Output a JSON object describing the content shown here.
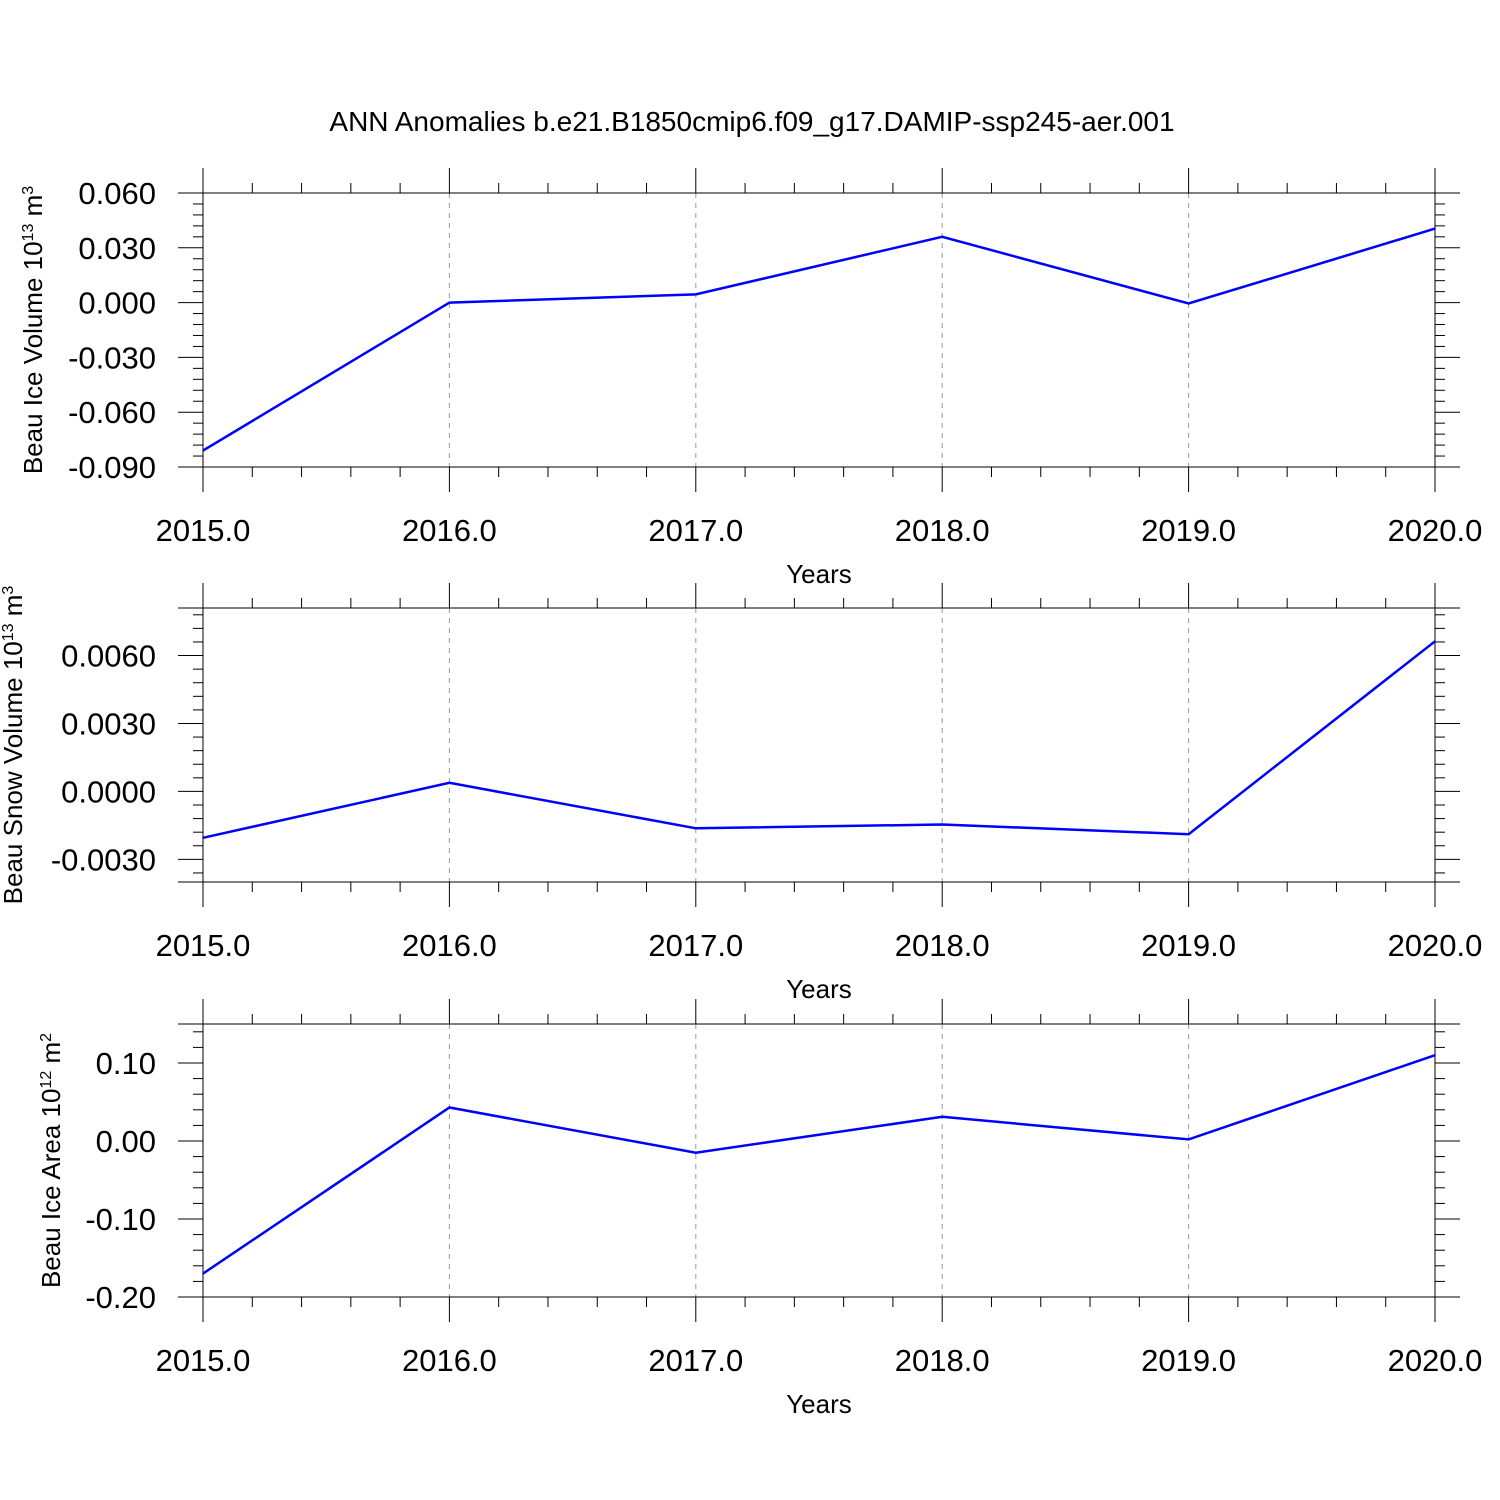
{
  "title": "ANN Anomalies b.e21.B1850cmip6.f09_g17.DAMIP-ssp245-aer.001",
  "line_color": "#0000ff",
  "grid_color": "#999999",
  "chart_data": [
    {
      "type": "line",
      "title": "",
      "xlabel": "Years",
      "ylabel": {
        "base": "Beau Ice Volume 10",
        "exponent": "13",
        "unit": " m",
        "unit_exponent": "3"
      },
      "x": [
        2015,
        2016,
        2017,
        2018,
        2019,
        2020
      ],
      "values": [
        -0.081,
        0.0,
        0.0045,
        0.036,
        -0.0005,
        0.0405
      ],
      "xlim": [
        2015,
        2020
      ],
      "ylim": [
        -0.09,
        0.06
      ],
      "xticks": [
        2015,
        2016,
        2017,
        2018,
        2019,
        2020
      ],
      "xtick_labels": [
        "2015.0",
        "2016.0",
        "2017.0",
        "2018.0",
        "2019.0",
        "2020.0"
      ],
      "yticks": [
        -0.09,
        -0.06,
        -0.03,
        0.0,
        0.03,
        0.06
      ],
      "ytick_labels": [
        "-0.090",
        "-0.060",
        "-0.030",
        "0.000",
        "0.030",
        "0.060"
      ],
      "grid": "vertical dashed at major x ticks",
      "legend": "none"
    },
    {
      "type": "line",
      "title": "",
      "xlabel": "Years",
      "ylabel": {
        "base": "Beau Snow Volume 10",
        "exponent": "13",
        "unit": " m",
        "unit_exponent": "3"
      },
      "x": [
        2015,
        2016,
        2017,
        2018,
        2019,
        2020
      ],
      "values": [
        -0.00205,
        0.00038,
        -0.00163,
        -0.00146,
        -0.00189,
        0.00663
      ],
      "xlim": [
        2015,
        2020
      ],
      "ylim": [
        -0.004,
        0.0081
      ],
      "xticks": [
        2015,
        2016,
        2017,
        2018,
        2019,
        2020
      ],
      "xtick_labels": [
        "2015.0",
        "2016.0",
        "2017.0",
        "2018.0",
        "2019.0",
        "2020.0"
      ],
      "yticks": [
        -0.003,
        0.0,
        0.003,
        0.006
      ],
      "ytick_labels": [
        "-0.0030",
        "0.0000",
        "0.0030",
        "0.0060"
      ],
      "grid": "vertical dashed at major x ticks",
      "legend": "none"
    },
    {
      "type": "line",
      "title": "",
      "xlabel": "Years",
      "ylabel": {
        "base": "Beau Ice Area 10",
        "exponent": "12",
        "unit": " m",
        "unit_exponent": "2"
      },
      "x": [
        2015,
        2016,
        2017,
        2018,
        2019,
        2020
      ],
      "values": [
        -0.17,
        0.043,
        -0.015,
        0.031,
        0.002,
        0.11
      ],
      "xlim": [
        2015,
        2020
      ],
      "ylim": [
        -0.2,
        0.15
      ],
      "xticks": [
        2015,
        2016,
        2017,
        2018,
        2019,
        2020
      ],
      "xtick_labels": [
        "2015.0",
        "2016.0",
        "2017.0",
        "2018.0",
        "2019.0",
        "2020.0"
      ],
      "yticks": [
        -0.2,
        -0.1,
        0.0,
        0.1
      ],
      "ytick_labels": [
        "-0.20",
        "-0.10",
        "0.00",
        "0.10"
      ],
      "grid": "vertical dashed at major x ticks",
      "legend": "none"
    }
  ]
}
